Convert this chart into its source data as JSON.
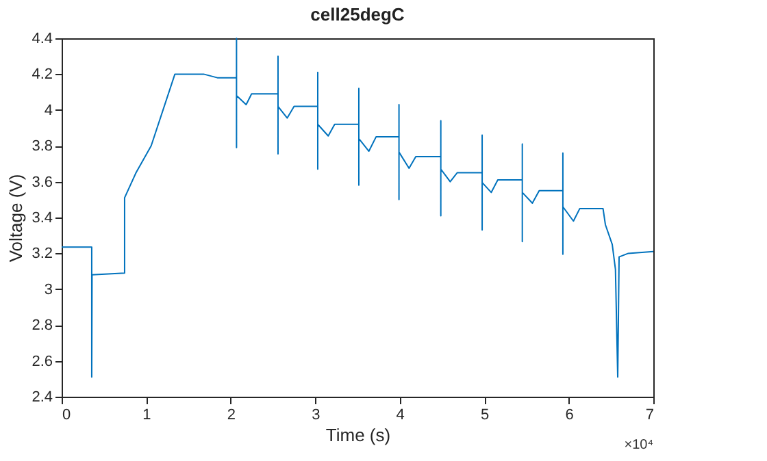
{
  "chart_data": {
    "type": "line",
    "title": "cell25degC",
    "xlabel": "Time (s)",
    "ylabel": "Voltage (V)",
    "x": [
      0,
      0.356,
      0.356,
      0.36,
      0.745,
      0.745,
      0.88,
      1.059,
      1.34,
      1.68,
      1.842,
      2.069,
      2.069,
      2.069,
      2.069,
      2.183,
      2.247,
      2.56,
      2.56,
      2.56,
      2.56,
      2.669,
      2.75,
      3.03,
      3.03,
      3.03,
      3.03,
      3.154,
      3.23,
      3.516,
      3.516,
      3.516,
      3.516,
      3.635,
      3.72,
      3.991,
      3.991,
      3.991,
      3.991,
      4.11,
      4.19,
      4.486,
      4.486,
      4.486,
      4.486,
      4.597,
      4.68,
      4.975,
      4.975,
      4.975,
      4.975,
      5.083,
      5.16,
      5.45,
      5.45,
      5.45,
      5.45,
      5.569,
      5.65,
      5.93,
      5.93,
      5.93,
      5.93,
      6.055,
      6.13,
      6.405,
      6.433,
      6.514,
      6.552,
      6.579,
      6.595,
      6.704,
      7
    ],
    "series": [
      {
        "color": "#0072bd",
        "values": [
          3.235,
          3.235,
          2.51,
          3.08,
          3.09,
          3.51,
          3.65,
          3.8,
          4.2,
          4.2,
          4.18,
          4.18,
          4.4,
          3.79,
          4.08,
          4.03,
          4.09,
          4.09,
          4.3,
          3.755,
          4.02,
          3.955,
          4.02,
          4.02,
          4.21,
          3.67,
          3.92,
          3.855,
          3.92,
          3.92,
          4.12,
          3.58,
          3.84,
          3.77,
          3.85,
          3.85,
          4.03,
          3.5,
          3.765,
          3.675,
          3.74,
          3.74,
          3.94,
          3.41,
          3.67,
          3.6,
          3.65,
          3.65,
          3.86,
          3.33,
          3.595,
          3.54,
          3.61,
          3.61,
          3.81,
          3.265,
          3.54,
          3.48,
          3.55,
          3.55,
          3.76,
          3.195,
          3.46,
          3.38,
          3.45,
          3.45,
          3.36,
          3.25,
          3.11,
          2.51,
          3.18,
          3.2,
          3.21
        ]
      }
    ],
    "xlim": [
      0,
      7
    ],
    "xticks": [
      0,
      1,
      2,
      3,
      4,
      5,
      6,
      7
    ],
    "ylim": [
      2.4,
      4.4
    ],
    "yticks": [
      2.4,
      2.6,
      2.8,
      3,
      3.2,
      3.4,
      3.6,
      3.8,
      4,
      4.2,
      4.4
    ],
    "annotations": [
      "×10⁴"
    ],
    "grid": false,
    "line_style": "solid"
  }
}
